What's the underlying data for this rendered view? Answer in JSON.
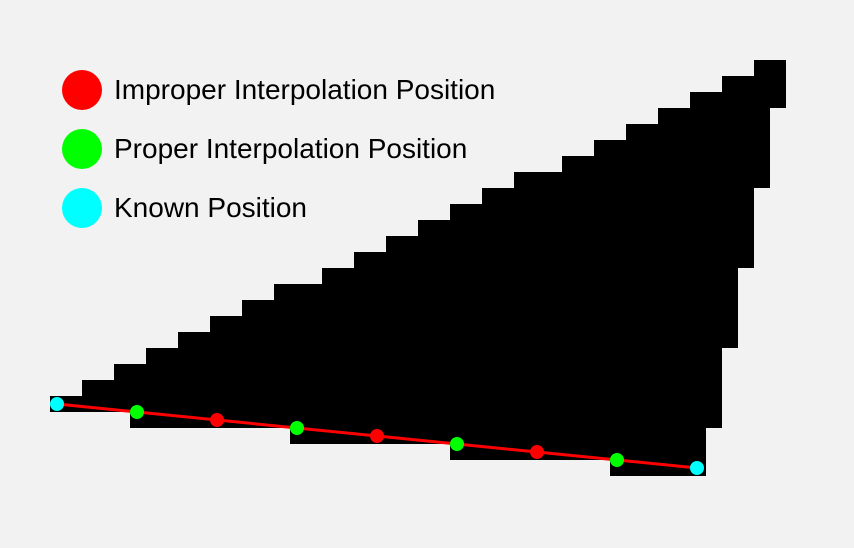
{
  "legend": [
    {
      "label": "Improper Interpolation Position",
      "color": "#ff0000",
      "icon": "red-circle"
    },
    {
      "label": "Proper Interpolation Position",
      "color": "#00ff00",
      "icon": "green-circle"
    },
    {
      "label": "Known Position",
      "color": "#00ffff",
      "icon": "cyan-circle"
    }
  ],
  "colors": {
    "background": "#f2f2f2",
    "shape": "#000000",
    "line": "#ff0000",
    "improper": "#ff0000",
    "proper": "#00ff00",
    "known": "#00ffff"
  },
  "points": [
    {
      "kind": "known"
    },
    {
      "kind": "proper"
    },
    {
      "kind": "improper"
    },
    {
      "kind": "proper"
    },
    {
      "kind": "improper"
    },
    {
      "kind": "proper"
    },
    {
      "kind": "improper"
    },
    {
      "kind": "proper"
    },
    {
      "kind": "known"
    }
  ]
}
